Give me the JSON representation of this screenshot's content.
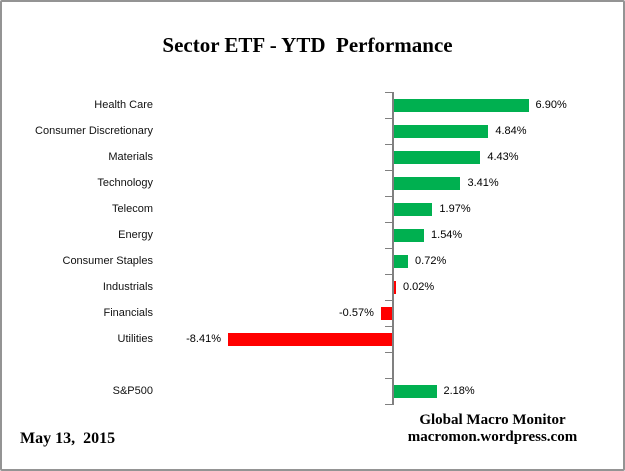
{
  "title": "Sector ETF - YTD  Performance",
  "footer": {
    "date": "May 13,  2015",
    "attribution_line1": "Global Macro Monitor",
    "attribution_line2": "macromon.wordpress.com"
  },
  "colors": {
    "green": "#00B050",
    "red": "#FF0000",
    "axis": "#808080",
    "border": "#949494"
  },
  "chart_data": {
    "type": "bar",
    "orientation": "horizontal",
    "title": "Sector ETF - YTD  Performance",
    "value_format": "percent",
    "legend": "none",
    "axis": {
      "zero_baseline": true,
      "xlim_percent": [
        -9,
        7.5
      ],
      "gridlines": false,
      "tick_marks": true
    },
    "items": [
      {
        "category": "Health Care",
        "value": 6.9,
        "label": "6.90%",
        "color": "green"
      },
      {
        "category": "Consumer Discretionary",
        "value": 4.84,
        "label": "4.84%",
        "color": "green"
      },
      {
        "category": "Materials",
        "value": 4.43,
        "label": "4.43%",
        "color": "green"
      },
      {
        "category": "Technology",
        "value": 3.41,
        "label": "3.41%",
        "color": "green"
      },
      {
        "category": "Telecom",
        "value": 1.97,
        "label": "1.97%",
        "color": "green"
      },
      {
        "category": "Energy",
        "value": 1.54,
        "label": "1.54%",
        "color": "green"
      },
      {
        "category": "Consumer Staples",
        "value": 0.72,
        "label": "0.72%",
        "color": "green"
      },
      {
        "category": "Industrials",
        "value": 0.02,
        "label": "0.02%",
        "color": "red"
      },
      {
        "category": "Financials",
        "value": -0.57,
        "label": "-0.57%",
        "color": "red"
      },
      {
        "category": "Utilities",
        "value": -8.41,
        "label": "-8.41%",
        "color": "red"
      },
      {
        "category": "S&P500",
        "value": 2.18,
        "label": "2.18%",
        "color": "green",
        "separated_group": true
      }
    ]
  }
}
